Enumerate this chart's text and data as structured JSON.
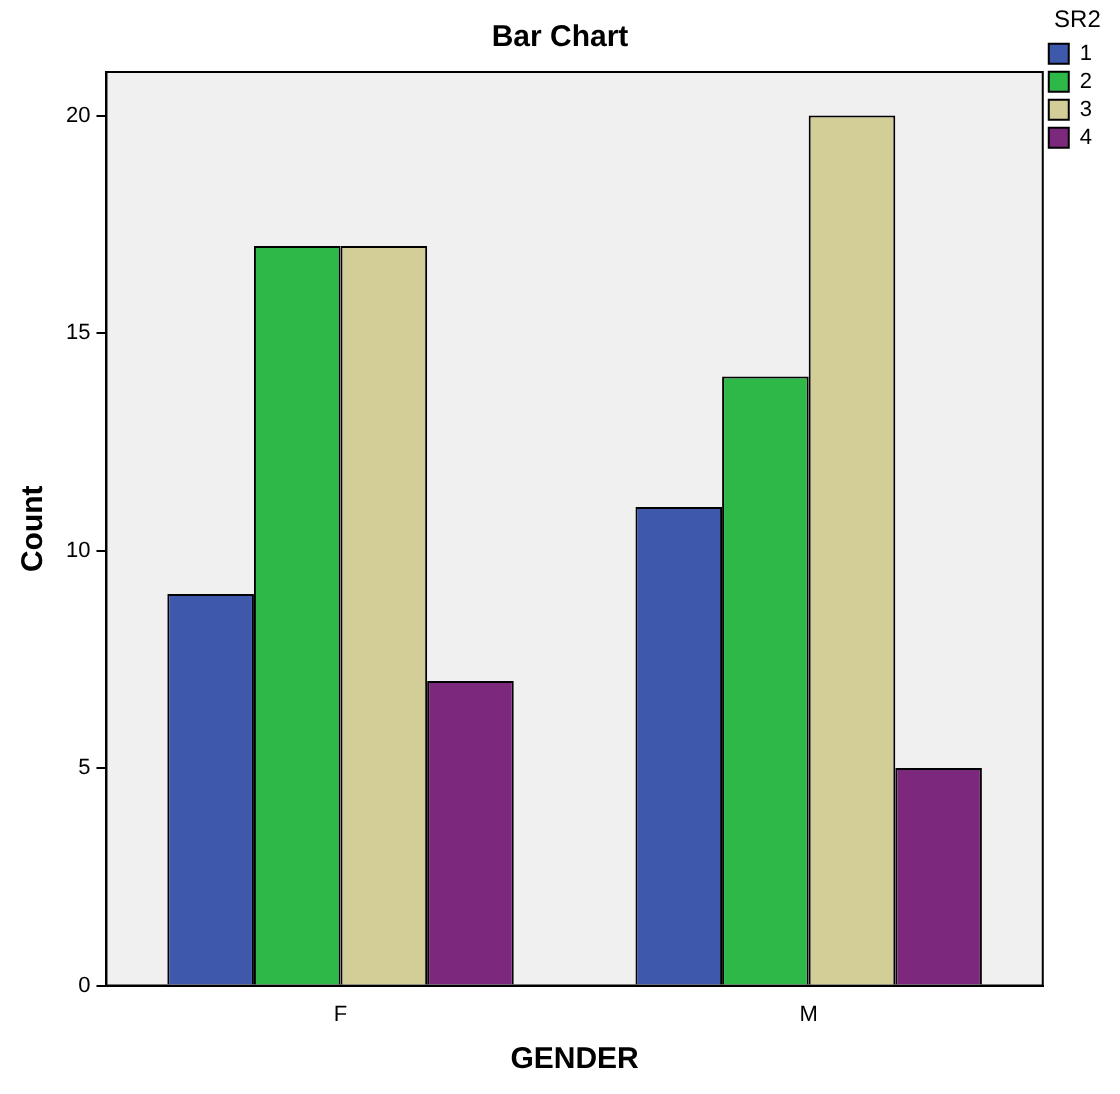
{
  "chart_data": {
    "type": "bar",
    "title": "Bar Chart",
    "xlabel": "GENDER",
    "ylabel": "Count",
    "legend_title": "SR2",
    "categories": [
      "F",
      "M"
    ],
    "series": [
      {
        "name": "1",
        "color": "#3e58ac",
        "values": [
          9,
          11
        ]
      },
      {
        "name": "2",
        "color": "#2eb848",
        "values": [
          17,
          14
        ]
      },
      {
        "name": "3",
        "color": "#d3ce97",
        "values": [
          17,
          20
        ]
      },
      {
        "name": "4",
        "color": "#7c287d",
        "values": [
          7,
          5
        ]
      }
    ],
    "ylim": [
      0,
      21
    ],
    "yticks": [
      0,
      5,
      10,
      15,
      20
    ],
    "grid": false,
    "legend": "top right"
  }
}
